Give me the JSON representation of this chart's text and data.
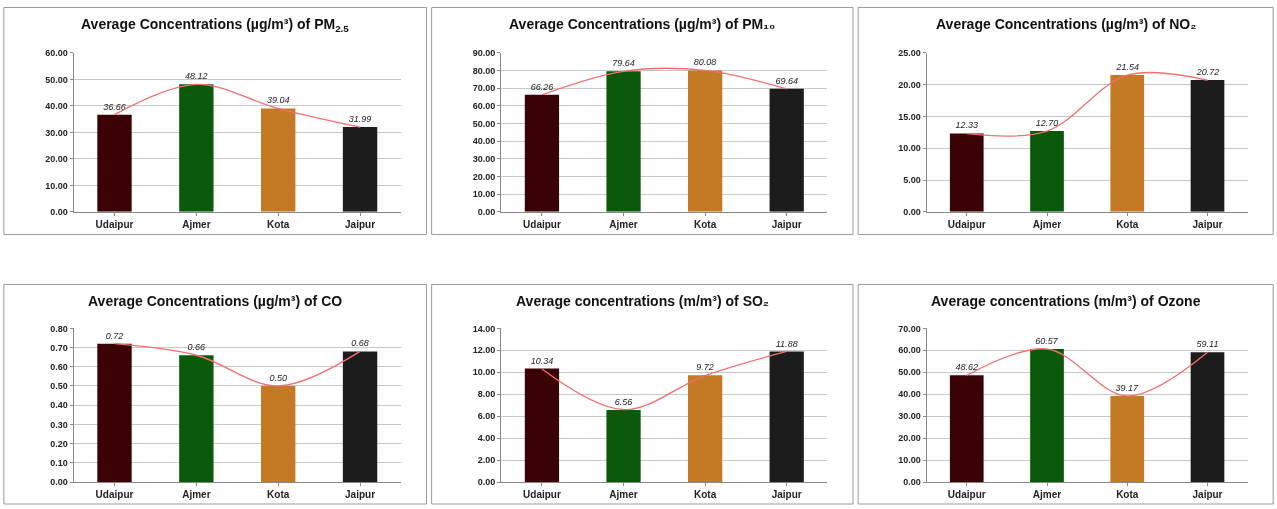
{
  "chart_data": [
    {
      "type": "bar",
      "title": "Average Concentrations (µg/m³) of PM$_{2.5}$",
      "categories": [
        "Udaipur",
        "Ajmer",
        "Kota",
        "Jaipur"
      ],
      "series": [
        {
          "colors": [
            "#3a0205",
            "#0b5a0b",
            "#c47a24",
            "#1c1c1c"
          ],
          "values": [
            36.66,
            48.12,
            39.04,
            31.99
          ],
          "value_labels": [
            "36.66",
            "48.12",
            "39.04",
            "31.99"
          ]
        },
        {
          "type": "line",
          "color": "#f07070",
          "values": [
            36.7,
            48.1,
            39.0,
            32.0
          ]
        }
      ],
      "ylim": [
        0,
        60
      ],
      "yticks": [
        {
          "value": 0,
          "label": "0.00"
        },
        {
          "value": 10,
          "label": "10.00"
        },
        {
          "value": 20,
          "label": "20.00"
        },
        {
          "value": 30,
          "label": "30.00"
        },
        {
          "value": 40,
          "label": "40.00"
        },
        {
          "value": 50,
          "label": "50.00"
        },
        {
          "value": 60,
          "label": "60.00"
        }
      ],
      "grid": "y",
      "legend": false
    },
    {
      "type": "bar",
      "title": "Average Concentrations (µg/m³) of PM₁₀",
      "categories": [
        "Udaipur",
        "Ajmer",
        "Kota",
        "Jaipur"
      ],
      "series": [
        {
          "colors": [
            "#3a0205",
            "#0b5a0b",
            "#c47a24",
            "#1c1c1c"
          ],
          "values": [
            66.26,
            79.64,
            80.08,
            69.64
          ],
          "value_labels": [
            "66.26",
            "79.64",
            "80.08",
            "69.64"
          ]
        },
        {
          "type": "line",
          "color": "#f07070",
          "values": [
            66.3,
            79.6,
            80.1,
            69.6
          ]
        }
      ],
      "ylim": [
        0,
        90
      ],
      "yticks": [
        {
          "value": 0,
          "label": "0.00"
        },
        {
          "value": 10,
          "label": "10.00"
        },
        {
          "value": 20,
          "label": "20.00"
        },
        {
          "value": 30,
          "label": "30.00"
        },
        {
          "value": 40,
          "label": "40.00"
        },
        {
          "value": 50,
          "label": "50.00"
        },
        {
          "value": 60,
          "label": "60.00"
        },
        {
          "value": 70,
          "label": "70.00"
        },
        {
          "value": 80,
          "label": "80.00"
        },
        {
          "value": 90,
          "label": "90.00"
        }
      ],
      "grid": "y",
      "legend": false
    },
    {
      "type": "bar",
      "title": "Average Concentrations (µg/m³) of NO₂",
      "categories": [
        "Udaipur",
        "Ajmer",
        "Kota",
        "Jaipur"
      ],
      "series": [
        {
          "colors": [
            "#3a0205",
            "#0b5a0b",
            "#c47a24",
            "#1c1c1c"
          ],
          "values": [
            12.33,
            12.7,
            21.54,
            20.72
          ],
          "value_labels": [
            "12.33",
            "12.70",
            "21.54",
            "20.72"
          ]
        },
        {
          "type": "line",
          "color": "#f07070",
          "values": [
            12.3,
            12.7,
            21.5,
            20.7
          ]
        }
      ],
      "ylim": [
        0,
        25
      ],
      "yticks": [
        {
          "value": 0,
          "label": "0.00"
        },
        {
          "value": 5,
          "label": "5.00"
        },
        {
          "value": 10,
          "label": "10.00"
        },
        {
          "value": 15,
          "label": "15.00"
        },
        {
          "value": 20,
          "label": "20.00"
        },
        {
          "value": 25,
          "label": "25.00"
        }
      ],
      "grid": "y",
      "legend": false
    },
    {
      "type": "bar",
      "title": "Average Concentrations (µg/m³) of CO",
      "categories": [
        "Udaipur",
        "Ajmer",
        "Kota",
        "Jaipur"
      ],
      "series": [
        {
          "colors": [
            "#3a0205",
            "#0b5a0b",
            "#c47a24",
            "#1c1c1c"
          ],
          "values": [
            0.72,
            0.66,
            0.5,
            0.68
          ],
          "value_labels": [
            "0.72",
            "0.66",
            "0.50",
            "0.68"
          ]
        },
        {
          "type": "line",
          "color": "#f07070",
          "values": [
            0.72,
            0.66,
            0.5,
            0.68
          ]
        }
      ],
      "ylim": [
        0,
        0.8
      ],
      "yticks": [
        {
          "value": 0,
          "label": "0.00"
        },
        {
          "value": 0.1,
          "label": "0.10"
        },
        {
          "value": 0.2,
          "label": "0.20"
        },
        {
          "value": 0.3,
          "label": "0.30"
        },
        {
          "value": 0.4,
          "label": "0.40"
        },
        {
          "value": 0.5,
          "label": "0.50"
        },
        {
          "value": 0.6,
          "label": "0.60"
        },
        {
          "value": 0.7,
          "label": "0.70"
        },
        {
          "value": 0.8,
          "label": "0.80"
        }
      ],
      "grid": "y",
      "legend": false
    },
    {
      "type": "bar",
      "title": "Average concentrations (m/m³) of SO₂",
      "categories": [
        "Udaipur",
        "Ajmer",
        "Kota",
        "Jaipur"
      ],
      "series": [
        {
          "colors": [
            "#3a0205",
            "#0b5a0b",
            "#c47a24",
            "#1c1c1c"
          ],
          "values": [
            10.34,
            6.56,
            9.72,
            11.88
          ],
          "value_labels": [
            "10.34",
            "6.56",
            "9.72",
            "11.88"
          ]
        },
        {
          "type": "line",
          "color": "#f07070",
          "values": [
            10.3,
            6.6,
            9.7,
            11.9
          ]
        }
      ],
      "ylim": [
        0,
        14
      ],
      "yticks": [
        {
          "value": 0,
          "label": "0.00"
        },
        {
          "value": 2,
          "label": "2.00"
        },
        {
          "value": 4,
          "label": "4.00"
        },
        {
          "value": 6,
          "label": "6.00"
        },
        {
          "value": 8,
          "label": "8.00"
        },
        {
          "value": 10,
          "label": "10.00"
        },
        {
          "value": 12,
          "label": "12.00"
        },
        {
          "value": 14,
          "label": "14.00"
        }
      ],
      "grid": "y",
      "legend": false
    },
    {
      "type": "bar",
      "title": "Average concentrations (m/m³) of Ozone",
      "categories": [
        "Udaipur",
        "Ajmer",
        "Kota",
        "Jaipur"
      ],
      "series": [
        {
          "colors": [
            "#3a0205",
            "#0b5a0b",
            "#c47a24",
            "#1c1c1c"
          ],
          "values": [
            48.62,
            60.57,
            39.17,
            59.11
          ],
          "value_labels": [
            "48.62",
            "60.57",
            "39.17",
            "59.11"
          ]
        },
        {
          "type": "line",
          "color": "#f07070",
          "values": [
            48.6,
            60.6,
            39.2,
            59.1
          ]
        }
      ],
      "ylim": [
        0,
        70
      ],
      "yticks": [
        {
          "value": 0,
          "label": "0.00"
        },
        {
          "value": 10,
          "label": "10.00"
        },
        {
          "value": 20,
          "label": "20.00"
        },
        {
          "value": 30,
          "label": "30.00"
        },
        {
          "value": 40,
          "label": "40.00"
        },
        {
          "value": 50,
          "label": "50.00"
        },
        {
          "value": 60,
          "label": "60.00"
        },
        {
          "value": 70,
          "label": "70.00"
        }
      ],
      "grid": "y",
      "legend": false
    }
  ]
}
